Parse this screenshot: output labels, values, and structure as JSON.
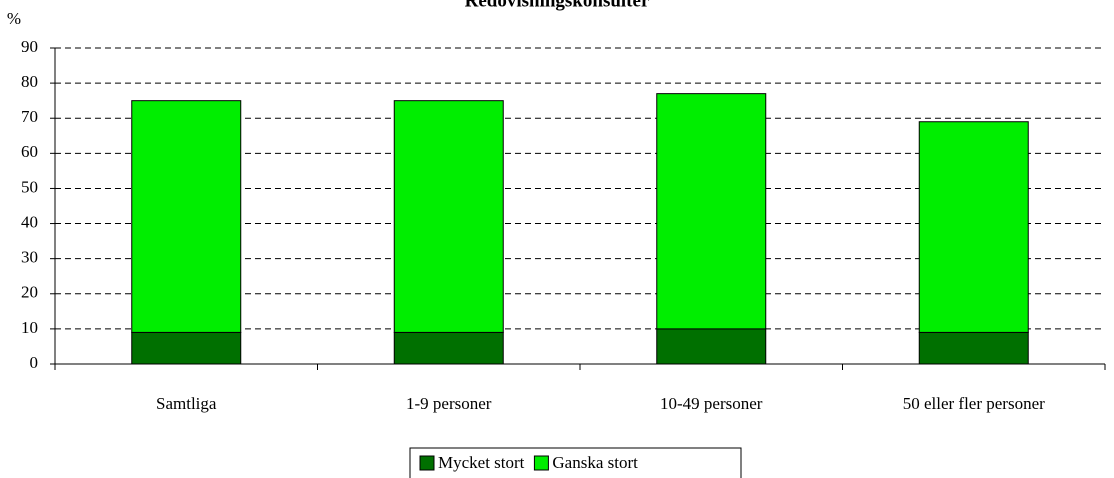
{
  "chart_data": {
    "type": "stacked_bar",
    "title": "Redovisningskonsulter",
    "y_label": "%",
    "categories": [
      "Samtliga",
      "1-9 personer",
      "10-49 personer",
      "50 eller fler personer"
    ],
    "series": [
      {
        "name": "Mycket stort",
        "color": "#007000",
        "values": [
          9,
          9,
          10,
          9
        ]
      },
      {
        "name": "Ganska stort",
        "color": "#00ee00",
        "values": [
          66,
          66,
          67,
          60
        ]
      }
    ],
    "ylim": [
      0,
      90
    ],
    "yticks": [
      0,
      10,
      20,
      30,
      40,
      50,
      60,
      70,
      80,
      90
    ],
    "grid": true
  }
}
